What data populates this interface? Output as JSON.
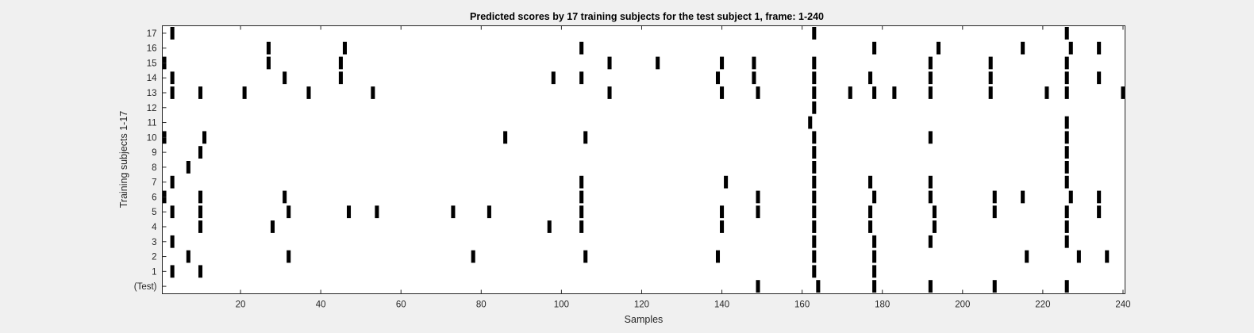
{
  "chart_data": {
    "type": "heatmap",
    "title": "Predicted scores by 17 training subjects for the test subject 1, frame: 1-240",
    "xlabel": "Samples",
    "ylabel": "Training subjects 1-17",
    "xlim": [
      0.5,
      240.5
    ],
    "xticks": [
      20,
      40,
      60,
      80,
      100,
      120,
      140,
      160,
      180,
      200,
      220,
      240
    ],
    "row_labels": [
      "17",
      "16",
      "15",
      "14",
      "13",
      "12",
      "11",
      "10",
      "9",
      "8",
      "7",
      "6",
      "5",
      "4",
      "3",
      "2",
      "1",
      "(Test)"
    ],
    "rows": [
      {
        "label": "17",
        "x": [
          3,
          163,
          226
        ]
      },
      {
        "label": "16",
        "x": [
          27,
          46,
          105,
          178,
          194,
          215,
          227,
          234
        ]
      },
      {
        "label": "15",
        "x": [
          1,
          27,
          45,
          112,
          124,
          140,
          148,
          163,
          192,
          207,
          226
        ]
      },
      {
        "label": "14",
        "x": [
          3,
          31,
          45,
          98,
          105,
          139,
          148,
          163,
          177,
          192,
          207,
          226,
          234
        ]
      },
      {
        "label": "13",
        "x": [
          3,
          10,
          21,
          37,
          53,
          112,
          140,
          149,
          163,
          172,
          178,
          183,
          192,
          207,
          221,
          226,
          240
        ]
      },
      {
        "label": "12",
        "x": [
          163
        ]
      },
      {
        "label": "11",
        "x": [
          162,
          226
        ]
      },
      {
        "label": "10",
        "x": [
          1,
          11,
          86,
          106,
          163,
          192,
          226
        ]
      },
      {
        "label": "9",
        "x": [
          10,
          163,
          226
        ]
      },
      {
        "label": "8",
        "x": [
          7,
          163,
          226
        ]
      },
      {
        "label": "7",
        "x": [
          3,
          105,
          141,
          163,
          177,
          192,
          226
        ]
      },
      {
        "label": "6",
        "x": [
          1,
          10,
          31,
          105,
          149,
          163,
          178,
          192,
          208,
          215,
          227,
          234
        ]
      },
      {
        "label": "5",
        "x": [
          3,
          10,
          32,
          47,
          54,
          73,
          82,
          105,
          140,
          149,
          163,
          177,
          193,
          208,
          226,
          234
        ]
      },
      {
        "label": "4",
        "x": [
          10,
          28,
          97,
          105,
          140,
          163,
          177,
          193,
          226
        ]
      },
      {
        "label": "3",
        "x": [
          3,
          163,
          178,
          192,
          226
        ]
      },
      {
        "label": "2",
        "x": [
          7,
          32,
          78,
          106,
          139,
          163,
          178,
          216,
          229,
          236
        ]
      },
      {
        "label": "1",
        "x": [
          3,
          10,
          163,
          178
        ]
      },
      {
        "label": "(Test)",
        "x": [
          149,
          164,
          178,
          192,
          208,
          226
        ]
      }
    ],
    "colors": {
      "mark": "#000000",
      "plot_background": "#ffffff",
      "figure_background": "#f0f0f0",
      "axis": "#262626"
    }
  }
}
